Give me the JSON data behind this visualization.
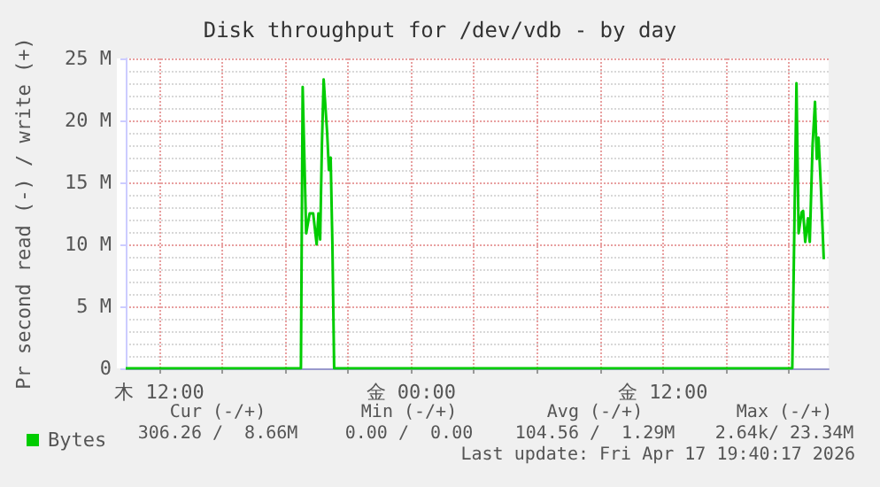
{
  "chart_data": {
    "type": "line",
    "title": "Disk throughput for /dev/vdb - by day",
    "ylabel": "Pr second read (-) / write (+)",
    "x": [
      "2026-04-16T10:24",
      "2026-04-16T18:45",
      "2026-04-16T18:50",
      "2026-04-16T19:00",
      "2026-04-16T19:10",
      "2026-04-16T19:20",
      "2026-04-16T19:30",
      "2026-04-16T19:35",
      "2026-04-16T19:40",
      "2026-04-16T19:45",
      "2026-04-16T19:50",
      "2026-04-16T20:00",
      "2026-04-16T20:05",
      "2026-04-16T20:10",
      "2026-04-16T20:15",
      "2026-04-16T20:20",
      "2026-04-16T20:35",
      "2026-04-17T18:06",
      "2026-04-17T18:10",
      "2026-04-17T18:22",
      "2026-04-17T18:28",
      "2026-04-17T18:37",
      "2026-04-17T18:41",
      "2026-04-17T18:47",
      "2026-04-17T18:55",
      "2026-04-17T19:00",
      "2026-04-17T19:08",
      "2026-04-17T19:15",
      "2026-04-17T19:20",
      "2026-04-17T19:25",
      "2026-04-17T19:32",
      "2026-04-17T19:40"
    ],
    "series": [
      {
        "name": "Bytes",
        "color": "#00cc00",
        "values": [
          0,
          0,
          22700000,
          10900000,
          12500000,
          12500000,
          10000000,
          12500000,
          10400000,
          18000000,
          23300000,
          19000000,
          16000000,
          17000000,
          10000000,
          0,
          0,
          0,
          0,
          23000000,
          10900000,
          12600000,
          12700000,
          10200000,
          12100000,
          10200000,
          18000000,
          21500000,
          16900000,
          18600000,
          14500000,
          8800000
        ]
      }
    ],
    "xlim": [
      "2026-04-16T10:24",
      "2026-04-17T19:54"
    ],
    "xticks": [
      {
        "value": "2026-04-16T12:00",
        "label": "木 12:00"
      },
      {
        "value": "2026-04-16T15:00",
        "label": null
      },
      {
        "value": "2026-04-16T18:00",
        "label": null
      },
      {
        "value": "2026-04-16T21:00",
        "label": null
      },
      {
        "value": "2026-04-17T00:00",
        "label": "金 00:00"
      },
      {
        "value": "2026-04-17T03:00",
        "label": null
      },
      {
        "value": "2026-04-17T06:00",
        "label": null
      },
      {
        "value": "2026-04-17T09:00",
        "label": null
      },
      {
        "value": "2026-04-17T12:00",
        "label": "金 12:00"
      },
      {
        "value": "2026-04-17T15:00",
        "label": null
      },
      {
        "value": "2026-04-17T18:00",
        "label": null
      }
    ],
    "ylim": [
      0,
      25000000
    ],
    "yticks": [
      {
        "value": 0,
        "label": "0"
      },
      {
        "value": 5000000,
        "label": "5 M"
      },
      {
        "value": 10000000,
        "label": "10 M"
      },
      {
        "value": 15000000,
        "label": "15 M"
      },
      {
        "value": 20000000,
        "label": "20 M"
      },
      {
        "value": 25000000,
        "label": "25 M"
      }
    ],
    "grid": true,
    "legend": "bottom left",
    "marker": "none",
    "annotations": [
      "Cur (-/+)",
      "Min (-/+)",
      "Avg (-/+)",
      "Max (-/+)",
      "306.26 /  8.66M",
      "0.00 /  0.00",
      "104.56 /  1.29M",
      "2.64k/ 23.34M",
      "Last update: Fri Apr 17 19:40:17 2026"
    ]
  }
}
